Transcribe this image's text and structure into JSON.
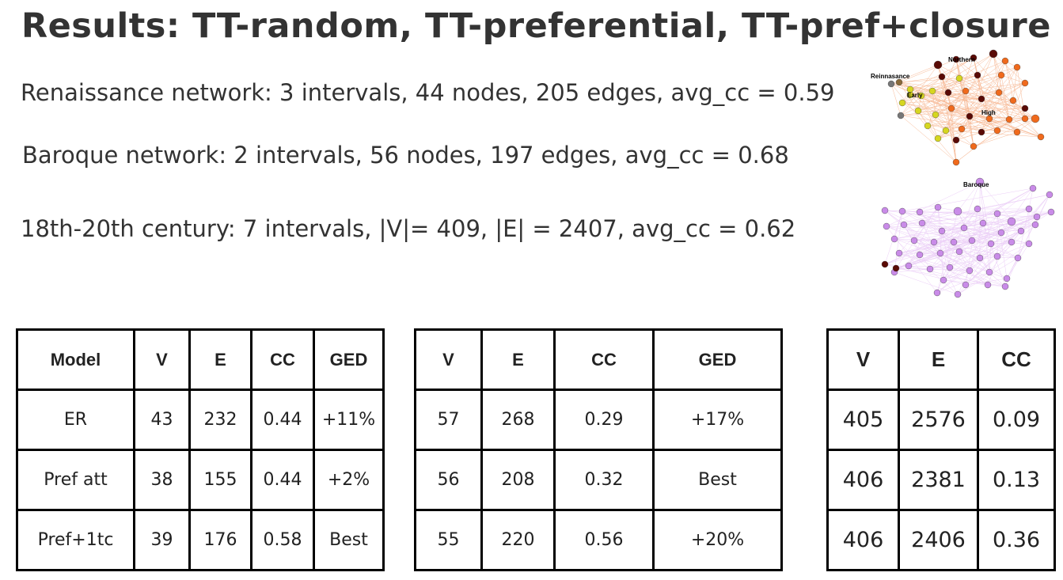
{
  "title": "Results: TT-random, TT-preferential, TT-pref+closure",
  "lines": {
    "renaissance": "Renaissance network:  3 intervals, 44 nodes, 205 edges, avg_cc = 0.59",
    "baroque": "Baroque network:  2 intervals, 56 nodes, 197 edges, avg_cc = 0.68",
    "century": "18th-20th century:  7 intervals, |V|= 409, |E| = 2407, avg_cc = 0.62"
  },
  "network1": {
    "labels": [
      "Northern",
      "Reinnasance",
      "Early",
      "High"
    ],
    "colors": {
      "dark": "#5a0a05",
      "orange": "#f06a1c",
      "yellow": "#d6d620",
      "gray": "#777777",
      "brown": "#8a6a3a"
    }
  },
  "network2": {
    "labels": [
      "Baroque"
    ],
    "colors": {
      "node": "#c98be8",
      "edge": "#e2b8f3",
      "dark": "#5a0a05"
    }
  },
  "table1": {
    "headers": [
      "Model",
      "V",
      "E",
      "CC",
      "GED"
    ],
    "rows": [
      [
        "ER",
        "43",
        "232",
        "0.44",
        "+11%"
      ],
      [
        "Pref att",
        "38",
        "155",
        "0.44",
        "+2%"
      ],
      [
        "Pref+1tc",
        "39",
        "176",
        "0.58",
        "Best"
      ]
    ]
  },
  "table2": {
    "headers": [
      "V",
      "E",
      "CC",
      "GED"
    ],
    "rows": [
      [
        "57",
        "268",
        "0.29",
        "+17%"
      ],
      [
        "56",
        "208",
        "0.32",
        "Best"
      ],
      [
        "55",
        "220",
        "0.56",
        "+20%"
      ]
    ]
  },
  "table3": {
    "headers": [
      "V",
      "E",
      "CC"
    ],
    "rows": [
      [
        "405",
        "2576",
        "0.09"
      ],
      [
        "406",
        "2381",
        "0.13"
      ],
      [
        "406",
        "2406",
        "0.36"
      ]
    ]
  }
}
